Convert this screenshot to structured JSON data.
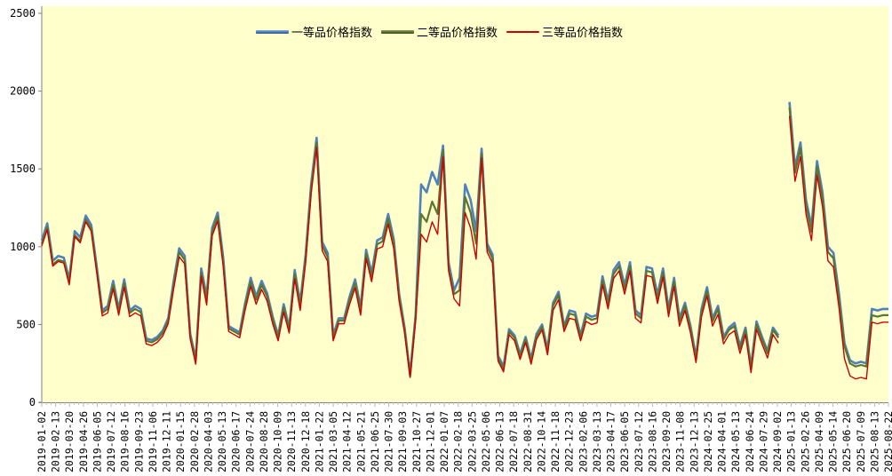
{
  "chart": {
    "plot_background": "#FFFFCC",
    "outer_background": "#FFFFFF",
    "axis_color": "#808080",
    "tick_color": "#B8B8B8",
    "label_color": "#000000",
    "y_ticks": [
      "0",
      "500",
      "1000",
      "1500",
      "2000",
      "2500"
    ]
  },
  "chart_data": {
    "type": "line",
    "title": "",
    "xlabel": "",
    "ylabel": "",
    "ylim": [
      0,
      2500
    ],
    "y_tick_step": 500,
    "grid": false,
    "legend_position": "top-center",
    "note_gap": "series break between 2024-09-02 and 2025-01-13 (null value)",
    "x_labels": [
      "2019-01-02",
      "2019-02-13",
      "2019-03-20",
      "2019-04-26",
      "2019-06-05",
      "2019-07-12",
      "2019-08-16",
      "2019-09-23",
      "2019-11-06",
      "2019-12-11",
      "2020-01-15",
      "2020-02-28",
      "2020-04-03",
      "2020-05-13",
      "2020-06-17",
      "2020-07-24",
      "2020-08-28",
      "2020-10-09",
      "2020-11-13",
      "2020-12-18",
      "2021-01-22",
      "2021-03-05",
      "2021-04-12",
      "2021-05-21",
      "2021-06-25",
      "2021-07-30",
      "2021-09-03",
      "2021-10-27",
      "2021-12-01",
      "2022-01-07",
      "2022-02-18",
      "2022-03-25",
      "2022-05-06",
      "2022-06-13",
      "2022-07-18",
      "2022-08-31",
      "2022-10-14",
      "2022-11-18",
      "2022-12-23",
      "2023-02-06",
      "2023-03-13",
      "2023-04-17",
      "2023-06-05",
      "2023-07-12",
      "2023-08-16",
      "2023-09-20",
      "2023-11-08",
      "2023-12-13",
      "2024-02-25",
      "2024-04-01",
      "2024-05-13",
      "2024-06-24",
      "2024-07-29",
      "2024-09-02",
      "2025-01-13",
      "2025-02-26",
      "2025-04-09",
      "2025-05-14",
      "2025-06-20",
      "2025-07-09",
      "2025-08-13",
      "2025-08-22"
    ],
    "series": [
      {
        "name": "一等品价格指数",
        "color": "#4F81BD",
        "width": 2.6,
        "values": [
          1040,
          1150,
          910,
          940,
          930,
          790,
          1100,
          1060,
          1200,
          1140,
          870,
          590,
          620,
          780,
          600,
          790,
          590,
          620,
          600,
          410,
          400,
          420,
          460,
          540,
          780,
          990,
          940,
          440,
          280,
          860,
          680,
          1120,
          1220,
          930,
          490,
          470,
          450,
          640,
          800,
          680,
          780,
          700,
          550,
          430,
          630,
          480,
          850,
          640,
          950,
          1400,
          1700,
          1030,
          960,
          430,
          540,
          540,
          680,
          790,
          610,
          980,
          830,
          1040,
          1060,
          1210,
          1050,
          700,
          480,
          180,
          560,
          1400,
          1350,
          1480,
          1400,
          1650,
          900,
          720,
          800,
          1400,
          1300,
          1100,
          1630,
          1020,
          950,
          300,
          230,
          470,
          430,
          310,
          420,
          280,
          440,
          500,
          340,
          640,
          710,
          490,
          590,
          580,
          430,
          570,
          550,
          560,
          810,
          650,
          850,
          900,
          750,
          900,
          590,
          560,
          870,
          860,
          690,
          860,
          600,
          800,
          540,
          640,
          490,
          290,
          600,
          740,
          540,
          620,
          420,
          480,
          510,
          360,
          480,
          230,
          520,
          420,
          330,
          480,
          430,
          null,
          1930,
          1510,
          1670,
          1300,
          1130,
          1550,
          1350,
          1000,
          960,
          700,
          380,
          270,
          250,
          260,
          250,
          600,
          590,
          600,
          600
        ]
      },
      {
        "name": "二等品价格指数",
        "color": "#5E7530",
        "width": 2.2,
        "values": [
          1020,
          1125,
          885,
          915,
          905,
          770,
          1075,
          1035,
          1175,
          1115,
          845,
          575,
          600,
          755,
          580,
          765,
          575,
          600,
          580,
          395,
          385,
          405,
          445,
          525,
          755,
          965,
          915,
          425,
          265,
          835,
          660,
          1095,
          1195,
          905,
          475,
          455,
          435,
          620,
          775,
          660,
          755,
          680,
          535,
          415,
          610,
          465,
          825,
          620,
          925,
          1370,
          1670,
          1005,
          935,
          415,
          525,
          525,
          660,
          765,
          590,
          955,
          805,
          1015,
          1035,
          1180,
          1025,
          680,
          465,
          168,
          545,
          1210,
          1160,
          1290,
          1210,
          1620,
          870,
          695,
          720,
          1320,
          1220,
          1020,
          1600,
          995,
          925,
          285,
          215,
          455,
          415,
          295,
          405,
          265,
          425,
          485,
          325,
          620,
          690,
          475,
          570,
          560,
          415,
          550,
          530,
          540,
          785,
          630,
          825,
          875,
          725,
          875,
          570,
          540,
          845,
          835,
          665,
          835,
          580,
          775,
          520,
          620,
          475,
          275,
          580,
          715,
          520,
          600,
          405,
          465,
          490,
          345,
          465,
          215,
          500,
          405,
          315,
          465,
          415,
          null,
          1895,
          1475,
          1635,
          1265,
          1095,
          1515,
          1315,
          965,
          925,
          665,
          360,
          250,
          230,
          240,
          230,
          560,
          550,
          560,
          560
        ]
      },
      {
        "name": "三等品价格指数",
        "color": "#CC0000",
        "width": 1.4,
        "values": [
          1005,
          1110,
          875,
          905,
          895,
          755,
          1065,
          1025,
          1160,
          1100,
          835,
          555,
          575,
          730,
          560,
          740,
          550,
          575,
          555,
          375,
          365,
          385,
          425,
          505,
          730,
          935,
          890,
          405,
          245,
          810,
          625,
          1070,
          1165,
          875,
          455,
          435,
          415,
          595,
          745,
          630,
          725,
          650,
          505,
          395,
          580,
          445,
          795,
          590,
          895,
          1340,
          1640,
          975,
          905,
          395,
          505,
          505,
          630,
          735,
          560,
          925,
          775,
          985,
          1000,
          1145,
          990,
          650,
          445,
          160,
          525,
          1080,
          1030,
          1160,
          1080,
          1580,
          845,
          665,
          620,
          1220,
          1120,
          920,
          1570,
          965,
          895,
          265,
          195,
          435,
          395,
          275,
          385,
          245,
          405,
          465,
          305,
          590,
          660,
          455,
          540,
          530,
          395,
          520,
          500,
          510,
          755,
          600,
          795,
          845,
          695,
          845,
          540,
          510,
          815,
          805,
          635,
          805,
          550,
          745,
          490,
          590,
          445,
          255,
          550,
          685,
          490,
          565,
          375,
          435,
          460,
          315,
          435,
          190,
          470,
          375,
          285,
          435,
          380,
          null,
          1840,
          1420,
          1580,
          1210,
          1040,
          1460,
          1260,
          910,
          870,
          610,
          280,
          170,
          150,
          160,
          150,
          515,
          505,
          515,
          515
        ]
      }
    ]
  }
}
